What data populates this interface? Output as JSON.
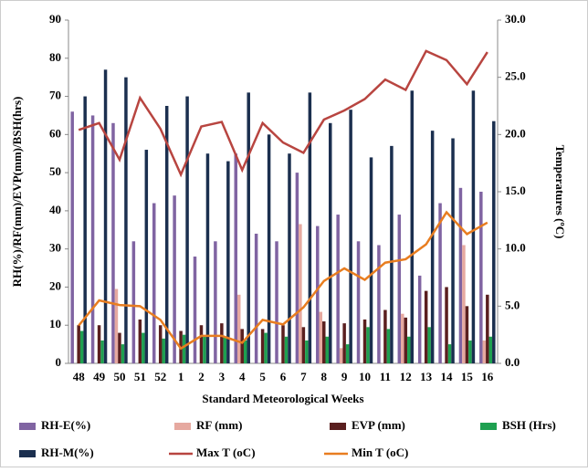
{
  "chart_data": {
    "type": "bar",
    "y_label": "RH(%)/RF(mm)/EVP(mm)/BSH(hrs)",
    "y2_label": "Temperatures (ºC)",
    "x_label": "Standard Meteorological Weeks",
    "categories": [
      "48",
      "49",
      "50",
      "51",
      "52",
      "1",
      "2",
      "3",
      "4",
      "5",
      "6",
      "7",
      "8",
      "9",
      "10",
      "11",
      "12",
      "13",
      "14",
      "15",
      "16"
    ],
    "series": [
      {
        "name": "RH-E(%)",
        "color": "#8064a2",
        "values": [
          66,
          65,
          63,
          32,
          42,
          44,
          28,
          32,
          55,
          34,
          32,
          50,
          36,
          39,
          32,
          31,
          39,
          23,
          42,
          46,
          45
        ]
      },
      {
        "name": "RF (mm)",
        "color": "#e6a9a0",
        "values": [
          0,
          0,
          19.5,
          0,
          0,
          0,
          0,
          0,
          18,
          0,
          0,
          36.5,
          13.5,
          4,
          0,
          0,
          13,
          0,
          0,
          31,
          6
        ]
      },
      {
        "name": "EVP (mm)",
        "color": "#5a1f1f",
        "values": [
          10,
          10,
          8,
          11.5,
          10,
          8.5,
          10,
          10.5,
          9,
          9,
          10,
          9.5,
          11,
          10.5,
          11.5,
          14,
          12,
          19,
          20,
          15,
          18
        ]
      },
      {
        "name": "BSH (Hrs)",
        "color": "#1ea050",
        "values": [
          8.5,
          6,
          5,
          8,
          6.5,
          7.5,
          7,
          7,
          6,
          8,
          7,
          6,
          7,
          5,
          9.5,
          9,
          7,
          9.5,
          5,
          6,
          7
        ]
      },
      {
        "name": "RH-M(%)",
        "color": "#1b2f4f",
        "values": [
          70,
          77,
          75,
          56,
          67.5,
          70,
          55,
          53,
          71,
          60,
          55,
          71,
          63,
          66.5,
          54,
          57,
          71.5,
          61,
          59,
          71.5,
          63.5
        ]
      },
      {
        "name": "Max T (oC)",
        "color": "#b84540",
        "axis": "y2",
        "type": "line",
        "values": [
          20.4,
          21,
          17.8,
          23.2,
          20.5,
          16.5,
          20.7,
          21.1,
          16.9,
          21,
          19.3,
          18.4,
          21.3,
          22.1,
          23.1,
          24.8,
          23.9,
          27.3,
          26.5,
          24.4,
          27.2
        ]
      },
      {
        "name": "Min T (oC)",
        "color": "#e87d20",
        "axis": "y2",
        "type": "line",
        "values": [
          3.3,
          5.5,
          5.1,
          5,
          3.8,
          1.3,
          2.4,
          2.4,
          1.8,
          3.8,
          3.4,
          4.9,
          7.2,
          8.3,
          7.3,
          8.8,
          9.1,
          10.4,
          13.2,
          11.3,
          12.3
        ]
      }
    ],
    "ylim": [
      0,
      90
    ],
    "yticks": [
      0,
      10,
      20,
      30,
      40,
      50,
      60,
      70,
      80,
      90
    ],
    "y2lim": [
      0,
      30
    ],
    "y2ticks": [
      {
        "value": 0,
        "label": "0.0"
      },
      {
        "value": 5,
        "label": "5.0"
      },
      {
        "value": 10,
        "label": "10.0"
      },
      {
        "value": 15,
        "label": "15.0"
      },
      {
        "value": 20,
        "label": "20.0"
      },
      {
        "value": 25,
        "label": "25.0"
      },
      {
        "value": 30,
        "label": "30.0"
      }
    ],
    "grid": false,
    "legend": "bottom"
  }
}
